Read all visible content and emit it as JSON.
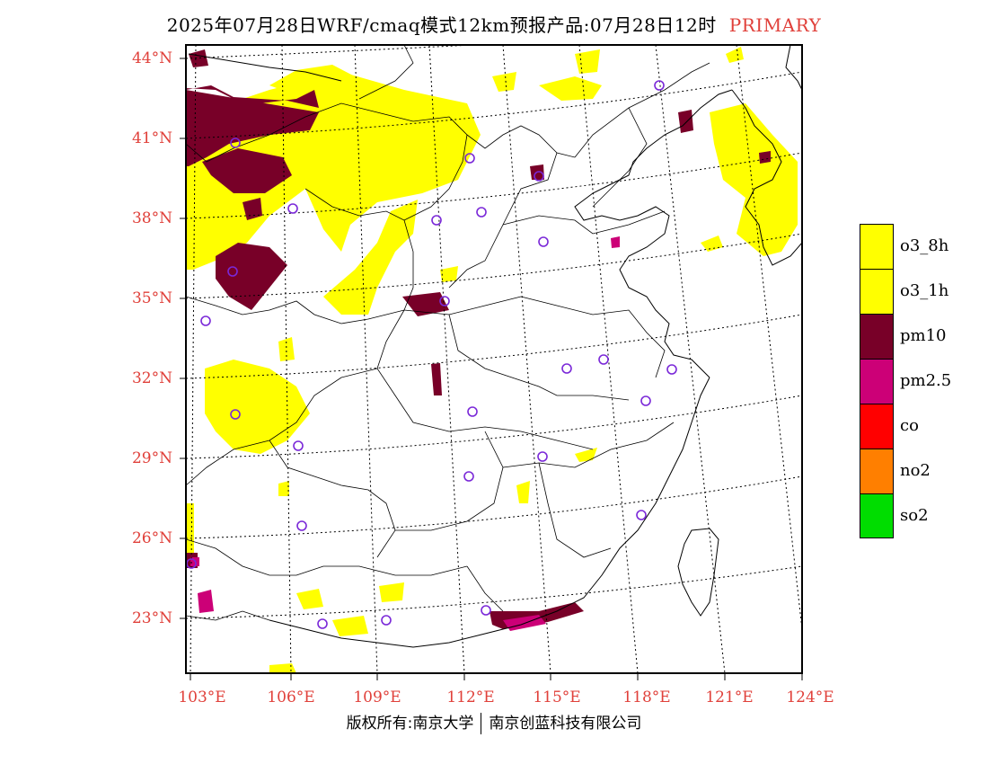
{
  "title": {
    "main": "2025年07月28日WRF/cmaq模式12km预报产品:07月28日12时",
    "tag": "PRIMARY"
  },
  "map": {
    "lat_labels": [
      "44°N",
      "41°N",
      "38°N",
      "35°N",
      "32°N",
      "29°N",
      "26°N",
      "23°N"
    ],
    "lon_labels": [
      "103°E",
      "106°E",
      "109°E",
      "112°E",
      "115°E",
      "118°E",
      "121°E",
      "124°E"
    ]
  },
  "legend": {
    "items": [
      {
        "label": "o3_8h",
        "color": "#ffff00"
      },
      {
        "label": "o3_1h",
        "color": "#ffff00"
      },
      {
        "label": "pm10",
        "color": "#780028"
      },
      {
        "label": "pm2.5",
        "color": "#cc0077"
      },
      {
        "label": "co",
        "color": "#ff0000"
      },
      {
        "label": "no2",
        "color": "#ff7f00"
      },
      {
        "label": "so2",
        "color": "#00dd00"
      }
    ]
  },
  "footer": {
    "left": "版权所有:南京大学",
    "right": "南京创蓝科技有限公司"
  },
  "colors": {
    "label_red": "#e0403a",
    "station_circle": "#7a28d8"
  }
}
